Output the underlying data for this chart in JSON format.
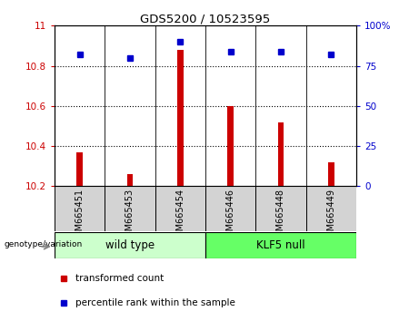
{
  "title": "GDS5200 / 10523595",
  "categories": [
    "GSM665451",
    "GSM665453",
    "GSM665454",
    "GSM665446",
    "GSM665448",
    "GSM665449"
  ],
  "transformed_count": [
    10.37,
    10.26,
    10.88,
    10.6,
    10.52,
    10.32
  ],
  "percentile_rank": [
    82,
    80,
    90,
    84,
    84,
    82
  ],
  "ymin": 10.2,
  "ymax": 11.0,
  "y_ticks": [
    10.2,
    10.4,
    10.6,
    10.8,
    11
  ],
  "y_tick_labels": [
    "10.2",
    "10.4",
    "10.6",
    "10.8",
    "11"
  ],
  "y2min": 0,
  "y2max": 100,
  "y2_ticks": [
    0,
    25,
    50,
    75,
    100
  ],
  "y2_labels": [
    "0",
    "25",
    "50",
    "75",
    "100%"
  ],
  "bar_color": "#cc0000",
  "dot_color": "#0000cc",
  "left_tick_color": "#cc0000",
  "right_tick_color": "#0000cc",
  "group1_label": "wild type",
  "group2_label": "KLF5 null",
  "group1_color": "#ccffcc",
  "group2_color": "#66ff66",
  "genotype_label": "genotype/variation",
  "legend_bar_label": "transformed count",
  "legend_dot_label": "percentile rank within the sample",
  "xtick_bg_color": "#d3d3d3",
  "dotted_lines": [
    10.4,
    10.6,
    10.8
  ]
}
